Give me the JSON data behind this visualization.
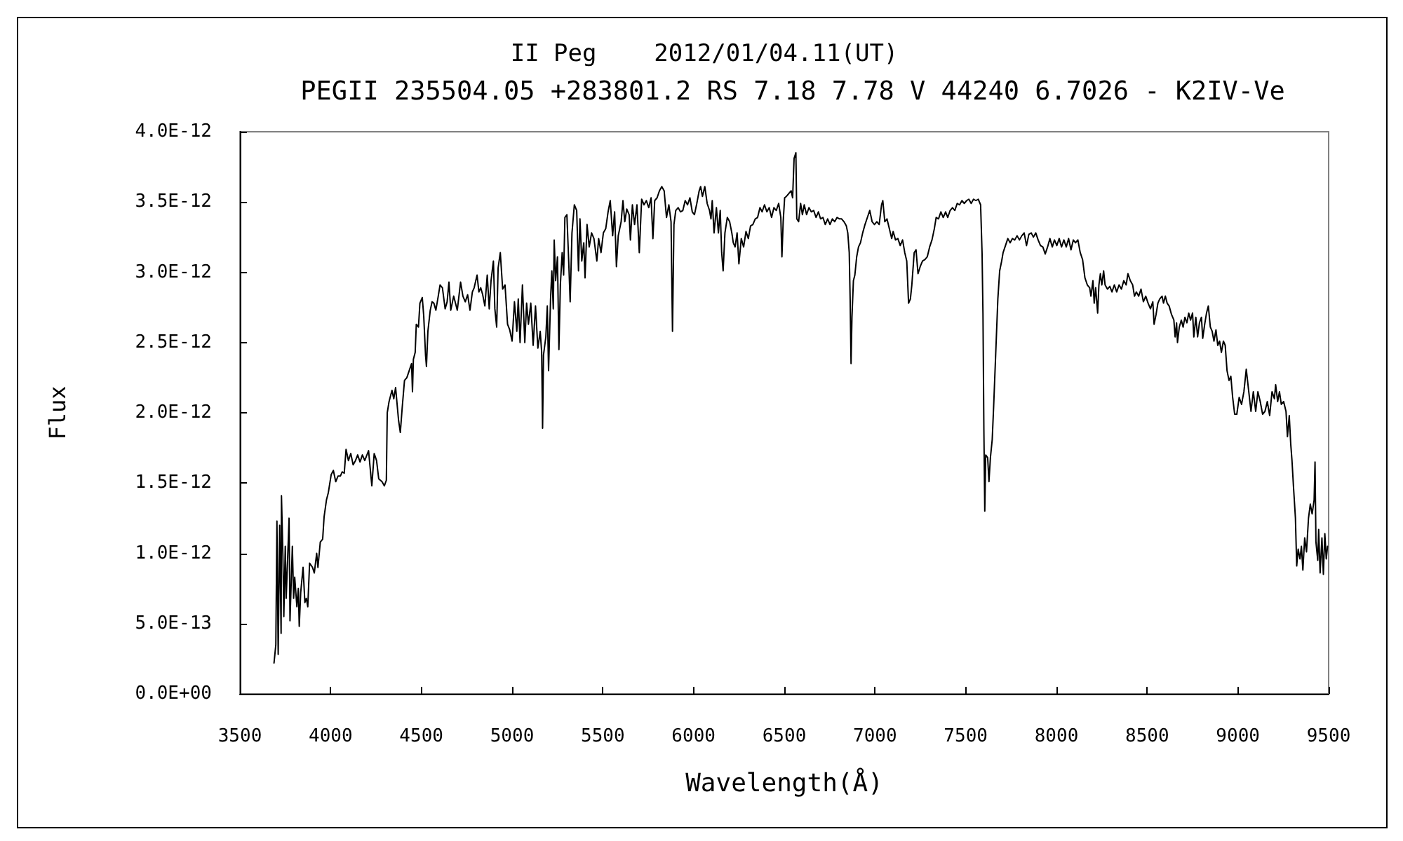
{
  "chart_data": {
    "type": "line",
    "title": "II Peg    2012/01/04.11(UT)",
    "subtitle": "PEGII 235504.05 +283801.2 RS 7.18 7.78 V 44240 6.7026 - K2IV-Ve",
    "xlabel": "Wavelength(Å)",
    "ylabel": "Flux",
    "x": [
      3688,
      3698,
      3704,
      3711,
      3719,
      3727,
      3729,
      3737,
      3742,
      3750,
      3755,
      3763,
      3771,
      3776,
      3789,
      3796,
      3802,
      3814,
      3822,
      3827,
      3835,
      3848,
      3858,
      3866,
      3874,
      3884,
      3900,
      3910,
      3923,
      3930,
      3943,
      3956,
      3964,
      3977,
      3987,
      4003,
      4015,
      4028,
      4041,
      4054,
      4064,
      4075,
      4085,
      4098,
      4111,
      4124,
      4137,
      4149,
      4162,
      4175,
      4188,
      4209,
      4227,
      4240,
      4253,
      4265,
      4283,
      4296,
      4307,
      4312,
      4322,
      4338,
      4348,
      4358,
      4374,
      4384,
      4394,
      4407,
      4420,
      4433,
      4446,
      4451,
      4456,
      4466,
      4472,
      4484,
      4492,
      4505,
      4513,
      4523,
      4528,
      4536,
      4549,
      4559,
      4569,
      4580,
      4593,
      4603,
      4616,
      4631,
      4642,
      4652,
      4662,
      4678,
      4688,
      4698,
      4716,
      4729,
      4742,
      4755,
      4768,
      4781,
      4791,
      4807,
      4817,
      4827,
      4838,
      4850,
      4863,
      4874,
      4884,
      4897,
      4905,
      4915,
      4923,
      4935,
      4948,
      4961,
      4975,
      4987,
      5000,
      5013,
      5026,
      5034,
      5044,
      5057,
      5070,
      5080,
      5090,
      5103,
      5116,
      5129,
      5142,
      5155,
      5163,
      5168,
      5173,
      5186,
      5194,
      5201,
      5212,
      5219,
      5227,
      5232,
      5240,
      5250,
      5258,
      5266,
      5276,
      5284,
      5291,
      5302,
      5312,
      5320,
      5330,
      5343,
      5356,
      5366,
      5374,
      5384,
      5395,
      5402,
      5413,
      5425,
      5438,
      5451,
      5467,
      5477,
      5490,
      5503,
      5516,
      5529,
      5541,
      5554,
      5565,
      5575,
      5585,
      5601,
      5611,
      5621,
      5632,
      5645,
      5652,
      5663,
      5675,
      5688,
      5701,
      5714,
      5727,
      5740,
      5753,
      5766,
      5776,
      5786,
      5799,
      5812,
      5825,
      5838,
      5851,
      5864,
      5876,
      5884,
      5892,
      5902,
      5915,
      5928,
      5941,
      5954,
      5967,
      5980,
      5993,
      6005,
      6018,
      6031,
      6039,
      6049,
      6062,
      6075,
      6088,
      6096,
      6103,
      6113,
      6126,
      6137,
      6147,
      6155,
      6163,
      6173,
      6186,
      6199,
      6211,
      6219,
      6229,
      6240,
      6250,
      6263,
      6276,
      6289,
      6302,
      6314,
      6327,
      6340,
      6353,
      6366,
      6378,
      6391,
      6404,
      6417,
      6430,
      6443,
      6456,
      6469,
      6481,
      6487,
      6494,
      6502,
      6512,
      6525,
      6538,
      6546,
      6554,
      6564,
      6569,
      6579,
      6590,
      6600,
      6610,
      6623,
      6636,
      6649,
      6662,
      6675,
      6688,
      6700,
      6713,
      6726,
      6739,
      6752,
      6765,
      6778,
      6791,
      6804,
      6816,
      6829,
      6842,
      6850,
      6858,
      6863,
      6868,
      6873,
      6881,
      6889,
      6899,
      6909,
      6920,
      6932,
      6945,
      6958,
      6971,
      6984,
      6997,
      7010,
      7023,
      7036,
      7043,
      7054,
      7066,
      7079,
      7092,
      7100,
      7113,
      7126,
      7139,
      7152,
      7164,
      7175,
      7185,
      7195,
      7203,
      7216,
      7226,
      7237,
      7249,
      7262,
      7275,
      7288,
      7301,
      7314,
      7327,
      7337,
      7350,
      7363,
      7376,
      7389,
      7401,
      7414,
      7427,
      7440,
      7453,
      7466,
      7479,
      7492,
      7505,
      7517,
      7530,
      7543,
      7556,
      7569,
      7582,
      7590,
      7595,
      7600,
      7605,
      7610,
      7621,
      7628,
      7636,
      7646,
      7654,
      7667,
      7677,
      7687,
      7698,
      7706,
      7719,
      7732,
      7745,
      7757,
      7770,
      7783,
      7796,
      7809,
      7822,
      7835,
      7848,
      7861,
      7873,
      7886,
      7899,
      7912,
      7925,
      7938,
      7951,
      7964,
      7977,
      7989,
      8002,
      8015,
      8028,
      8041,
      8054,
      8067,
      8080,
      8093,
      8105,
      8118,
      8131,
      8144,
      8157,
      8170,
      8183,
      8190,
      8201,
      8208,
      8216,
      8227,
      8234,
      8242,
      8250,
      8260,
      8268,
      8281,
      8294,
      8306,
      8319,
      8332,
      8345,
      8358,
      8371,
      8384,
      8394,
      8407,
      8420,
      8430,
      8440,
      8453,
      8466,
      8479,
      8492,
      8505,
      8518,
      8531,
      8538,
      8549,
      8559,
      8569,
      8582,
      8590,
      8600,
      8610,
      8621,
      8634,
      8647,
      8654,
      8662,
      8667,
      8677,
      8688,
      8698,
      8708,
      8719,
      8729,
      8739,
      8750,
      8757,
      8768,
      8778,
      8788,
      8799,
      8806,
      8817,
      8827,
      8837,
      8848,
      8858,
      8868,
      8879,
      8889,
      8899,
      8909,
      8920,
      8930,
      8940,
      8951,
      8961,
      8971,
      8982,
      8994,
      9007,
      9020,
      9033,
      9046,
      9059,
      9072,
      9085,
      9098,
      9110,
      9123,
      9136,
      9149,
      9162,
      9175,
      9188,
      9201,
      9208,
      9219,
      9229,
      9239,
      9252,
      9265,
      9273,
      9283,
      9291,
      9298,
      9306,
      9317,
      9324,
      9332,
      9342,
      9350,
      9358,
      9368,
      9378,
      9389,
      9399,
      9409,
      9420,
      9425,
      9430,
      9440,
      9445,
      9453,
      9463,
      9471,
      9479,
      9487,
      9494
    ],
    "series": [
      {
        "color": "#000000",
        "values": [
          2.2e-13,
          3.5e-13,
          1.23e-12,
          2.8e-13,
          1.2e-12,
          4.3e-13,
          1.41e-12,
          9.8e-13,
          5.5e-13,
          1.05e-12,
          6.8e-13,
          9.6e-13,
          1.25e-12,
          5.2e-13,
          1.05e-12,
          6.8e-13,
          8.3e-13,
          6.2e-13,
          7.5e-13,
          4.8e-13,
          7.2e-13,
          9e-13,
          6.5e-13,
          6.8e-13,
          6.2e-13,
          9.3e-13,
          9e-13,
          8.6e-13,
          1e-12,
          9e-13,
          1.08e-12,
          1.1e-12,
          1.26e-12,
          1.38e-12,
          1.43e-12,
          1.56e-12,
          1.59e-12,
          1.51e-12,
          1.55e-12,
          1.55e-12,
          1.58e-12,
          1.57e-12,
          1.74e-12,
          1.66e-12,
          1.71e-12,
          1.63e-12,
          1.66e-12,
          1.7e-12,
          1.65e-12,
          1.7e-12,
          1.66e-12,
          1.73e-12,
          1.48e-12,
          1.71e-12,
          1.66e-12,
          1.53e-12,
          1.51e-12,
          1.48e-12,
          1.52e-12,
          2e-12,
          2.08e-12,
          2.16e-12,
          2.1e-12,
          2.18e-12,
          1.95e-12,
          1.86e-12,
          2.03e-12,
          2.23e-12,
          2.25e-12,
          2.3e-12,
          2.35e-12,
          2.15e-12,
          2.38e-12,
          2.43e-12,
          2.63e-12,
          2.61e-12,
          2.78e-12,
          2.82e-12,
          2.69e-12,
          2.41e-12,
          2.33e-12,
          2.58e-12,
          2.73e-12,
          2.79e-12,
          2.78e-12,
          2.73e-12,
          2.83e-12,
          2.91e-12,
          2.89e-12,
          2.74e-12,
          2.79e-12,
          2.93e-12,
          2.73e-12,
          2.83e-12,
          2.78e-12,
          2.73e-12,
          2.93e-12,
          2.83e-12,
          2.79e-12,
          2.84e-12,
          2.73e-12,
          2.86e-12,
          2.89e-12,
          2.98e-12,
          2.86e-12,
          2.89e-12,
          2.84e-12,
          2.76e-12,
          2.98e-12,
          2.74e-12,
          2.94e-12,
          3.08e-12,
          2.74e-12,
          2.61e-12,
          3.03e-12,
          3.14e-12,
          2.88e-12,
          2.91e-12,
          2.63e-12,
          2.59e-12,
          2.51e-12,
          2.79e-12,
          2.58e-12,
          2.81e-12,
          2.5e-12,
          2.91e-12,
          2.5e-12,
          2.78e-12,
          2.63e-12,
          2.78e-12,
          2.48e-12,
          2.76e-12,
          2.46e-12,
          2.58e-12,
          2.43e-12,
          1.89e-12,
          2.41e-12,
          2.54e-12,
          2.76e-12,
          2.3e-12,
          2.81e-12,
          3.01e-12,
          2.74e-12,
          3.23e-12,
          2.94e-12,
          3.11e-12,
          2.45e-12,
          2.91e-12,
          3.14e-12,
          2.98e-12,
          3.39e-12,
          3.41e-12,
          3.08e-12,
          2.79e-12,
          3.28e-12,
          3.48e-12,
          3.44e-12,
          3.01e-12,
          3.38e-12,
          3.08e-12,
          3.21e-12,
          2.96e-12,
          3.34e-12,
          3.18e-12,
          3.28e-12,
          3.24e-12,
          3.08e-12,
          3.24e-12,
          3.14e-12,
          3.28e-12,
          3.31e-12,
          3.43e-12,
          3.51e-12,
          3.26e-12,
          3.43e-12,
          3.04e-12,
          3.26e-12,
          3.36e-12,
          3.51e-12,
          3.36e-12,
          3.45e-12,
          3.41e-12,
          3.23e-12,
          3.48e-12,
          3.34e-12,
          3.48e-12,
          3.14e-12,
          3.52e-12,
          3.48e-12,
          3.51e-12,
          3.46e-12,
          3.53e-12,
          3.24e-12,
          3.51e-12,
          3.53e-12,
          3.58e-12,
          3.61e-12,
          3.58e-12,
          3.39e-12,
          3.48e-12,
          3.36e-12,
          2.58e-12,
          3.34e-12,
          3.44e-12,
          3.46e-12,
          3.43e-12,
          3.44e-12,
          3.51e-12,
          3.48e-12,
          3.53e-12,
          3.43e-12,
          3.41e-12,
          3.49e-12,
          3.58e-12,
          3.61e-12,
          3.54e-12,
          3.61e-12,
          3.49e-12,
          3.44e-12,
          3.38e-12,
          3.51e-12,
          3.28e-12,
          3.46e-12,
          3.28e-12,
          3.44e-12,
          3.14e-12,
          3.01e-12,
          3.28e-12,
          3.39e-12,
          3.36e-12,
          3.28e-12,
          3.21e-12,
          3.18e-12,
          3.28e-12,
          3.06e-12,
          3.24e-12,
          3.18e-12,
          3.29e-12,
          3.24e-12,
          3.33e-12,
          3.34e-12,
          3.38e-12,
          3.39e-12,
          3.46e-12,
          3.43e-12,
          3.48e-12,
          3.43e-12,
          3.46e-12,
          3.39e-12,
          3.46e-12,
          3.44e-12,
          3.49e-12,
          3.39e-12,
          3.11e-12,
          3.36e-12,
          3.53e-12,
          3.54e-12,
          3.56e-12,
          3.58e-12,
          3.53e-12,
          3.81e-12,
          3.85e-12,
          3.38e-12,
          3.36e-12,
          3.49e-12,
          3.41e-12,
          3.48e-12,
          3.41e-12,
          3.46e-12,
          3.43e-12,
          3.44e-12,
          3.39e-12,
          3.43e-12,
          3.38e-12,
          3.39e-12,
          3.34e-12,
          3.38e-12,
          3.34e-12,
          3.38e-12,
          3.36e-12,
          3.39e-12,
          3.38e-12,
          3.38e-12,
          3.36e-12,
          3.33e-12,
          3.28e-12,
          3.14e-12,
          2.81e-12,
          2.35e-12,
          2.68e-12,
          2.94e-12,
          2.98e-12,
          3.11e-12,
          3.18e-12,
          3.21e-12,
          3.28e-12,
          3.34e-12,
          3.39e-12,
          3.44e-12,
          3.36e-12,
          3.34e-12,
          3.36e-12,
          3.34e-12,
          3.48e-12,
          3.51e-12,
          3.36e-12,
          3.38e-12,
          3.31e-12,
          3.24e-12,
          3.29e-12,
          3.23e-12,
          3.24e-12,
          3.19e-12,
          3.23e-12,
          3.14e-12,
          3.08e-12,
          2.78e-12,
          2.81e-12,
          2.91e-12,
          3.14e-12,
          3.16e-12,
          2.99e-12,
          3.04e-12,
          3.08e-12,
          3.09e-12,
          3.11e-12,
          3.18e-12,
          3.23e-12,
          3.31e-12,
          3.39e-12,
          3.38e-12,
          3.43e-12,
          3.39e-12,
          3.43e-12,
          3.39e-12,
          3.44e-12,
          3.46e-12,
          3.44e-12,
          3.49e-12,
          3.48e-12,
          3.51e-12,
          3.49e-12,
          3.51e-12,
          3.52e-12,
          3.49e-12,
          3.52e-12,
          3.51e-12,
          3.52e-12,
          3.48e-12,
          3.14e-12,
          2.71e-12,
          1.88e-12,
          1.3e-12,
          1.7e-12,
          1.68e-12,
          1.51e-12,
          1.68e-12,
          1.81e-12,
          2.05e-12,
          2.48e-12,
          2.81e-12,
          3.01e-12,
          3.08e-12,
          3.14e-12,
          3.19e-12,
          3.24e-12,
          3.21e-12,
          3.24e-12,
          3.23e-12,
          3.26e-12,
          3.23e-12,
          3.26e-12,
          3.28e-12,
          3.19e-12,
          3.27e-12,
          3.28e-12,
          3.25e-12,
          3.28e-12,
          3.23e-12,
          3.19e-12,
          3.18e-12,
          3.13e-12,
          3.18e-12,
          3.24e-12,
          3.18e-12,
          3.23e-12,
          3.19e-12,
          3.24e-12,
          3.18e-12,
          3.23e-12,
          3.18e-12,
          3.24e-12,
          3.16e-12,
          3.23e-12,
          3.21e-12,
          3.23e-12,
          3.14e-12,
          3.09e-12,
          2.96e-12,
          2.91e-12,
          2.89e-12,
          2.83e-12,
          2.94e-12,
          2.78e-12,
          2.89e-12,
          2.71e-12,
          2.91e-12,
          2.99e-12,
          2.91e-12,
          3.01e-12,
          2.91e-12,
          2.88e-12,
          2.9e-12,
          2.86e-12,
          2.91e-12,
          2.86e-12,
          2.91e-12,
          2.88e-12,
          2.94e-12,
          2.91e-12,
          2.99e-12,
          2.94e-12,
          2.91e-12,
          2.83e-12,
          2.86e-12,
          2.83e-12,
          2.88e-12,
          2.79e-12,
          2.83e-12,
          2.78e-12,
          2.74e-12,
          2.79e-12,
          2.63e-12,
          2.7e-12,
          2.78e-12,
          2.81e-12,
          2.83e-12,
          2.78e-12,
          2.83e-12,
          2.78e-12,
          2.76e-12,
          2.7e-12,
          2.66e-12,
          2.54e-12,
          2.64e-12,
          2.5e-12,
          2.61e-12,
          2.66e-12,
          2.61e-12,
          2.68e-12,
          2.64e-12,
          2.71e-12,
          2.66e-12,
          2.71e-12,
          2.54e-12,
          2.68e-12,
          2.54e-12,
          2.64e-12,
          2.68e-12,
          2.53e-12,
          2.63e-12,
          2.71e-12,
          2.76e-12,
          2.61e-12,
          2.58e-12,
          2.51e-12,
          2.59e-12,
          2.48e-12,
          2.51e-12,
          2.43e-12,
          2.51e-12,
          2.48e-12,
          2.3e-12,
          2.23e-12,
          2.26e-12,
          2.11e-12,
          1.99e-12,
          1.99e-12,
          2.11e-12,
          2.06e-12,
          2.15e-12,
          2.31e-12,
          2.16e-12,
          2.01e-12,
          2.15e-12,
          2.01e-12,
          2.15e-12,
          2.08e-12,
          1.99e-12,
          2.01e-12,
          2.08e-12,
          1.98e-12,
          2.15e-12,
          2.1e-12,
          2.2e-12,
          2.08e-12,
          2.15e-12,
          2.06e-12,
          2.08e-12,
          2.01e-12,
          1.83e-12,
          1.98e-12,
          1.78e-12,
          1.66e-12,
          1.48e-12,
          1.25e-12,
          9.1e-13,
          1.03e-12,
          9.6e-13,
          1.05e-12,
          8.8e-13,
          1.11e-12,
          1.01e-12,
          1.25e-12,
          1.35e-12,
          1.28e-12,
          1.38e-12,
          1.65e-12,
          1.08e-12,
          9.5e-13,
          1.17e-12,
          8.6e-13,
          1.11e-12,
          8.5e-13,
          1.14e-12,
          9.6e-13,
          1.05e-12
        ]
      }
    ],
    "xlim": [
      3500,
      9500
    ],
    "xticks": [
      3500,
      4000,
      4500,
      5000,
      5500,
      6000,
      6500,
      7000,
      7500,
      8000,
      8500,
      9000,
      9500
    ],
    "ylim": [
      0,
      4e-12
    ],
    "yticks": [
      {
        "value": 0,
        "label": "0.0E+00"
      },
      {
        "value": 5e-13,
        "label": "5.0E-13"
      },
      {
        "value": 1e-12,
        "label": "1.0E-12"
      },
      {
        "value": 1.5e-12,
        "label": "1.5E-12"
      },
      {
        "value": 2e-12,
        "label": "2.0E-12"
      },
      {
        "value": 2.5e-12,
        "label": "2.5E-12"
      },
      {
        "value": 3e-12,
        "label": "3.0E-12"
      },
      {
        "value": 3.5e-12,
        "label": "3.5E-12"
      },
      {
        "value": 4e-12,
        "label": "4.0E-12"
      }
    ],
    "grid": false,
    "marker": "none",
    "line_style": "solid"
  }
}
